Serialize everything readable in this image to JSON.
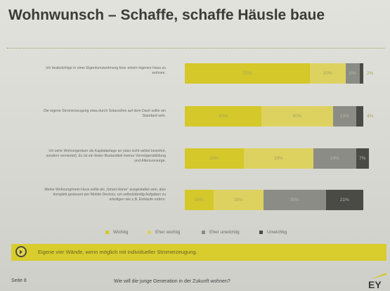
{
  "page": {
    "title": "Wohnwunsch – Schaffe, schaffe Häusle baue",
    "banner_text": "Eigene vier Wände, wenn möglich mit individueller Stromerzeugung.",
    "page_number": "Seite 8",
    "footer_question": "Wie will die junge Generation in der Zukunft wohnen?",
    "logo_text": "EY"
  },
  "chart_data": {
    "type": "bar",
    "stacked": true,
    "orientation": "horizontal",
    "unit": "%",
    "categories": [
      "Ich beabsichtige in einer Eigentumswohnung bzw. einem eigenen Haus zu wohnen.",
      "Die eigene Stromerzeugung etwa durch Solarzellen auf dem Dach sollte ein Standard sein.",
      "Ich sehe Wohneigentum als Kapitalanlage an (also nicht selbst bewohnt, sondern vermietet). Es ist ein fester Bestandteil meiner Vermögensbildung und Altersvorsorge.",
      "Meine Wohnung/mein Haus sollte als „Smart Home“ ausgestattet sein, also komplett gesteuert per Mobile Devices, um selbstständig Aufgaben zu erledigen wie z.B. Einkäufe ordern."
    ],
    "series": [
      {
        "name": "Wichtig",
        "color": "#d4c82a",
        "values": [
          70,
          43,
          33,
          16
        ]
      },
      {
        "name": "Eher wichtig",
        "color": "#ddd260",
        "values": [
          20,
          40,
          39,
          28
        ]
      },
      {
        "name": "Eher unwichtig",
        "color": "#8c8c86",
        "values": [
          8,
          13,
          24,
          35
        ]
      },
      {
        "name": "Unwichtig",
        "color": "#4a4a46",
        "values": [
          2,
          4,
          7,
          21
        ]
      }
    ],
    "value_labels": [
      [
        "70%",
        "20%",
        "8%",
        "2%"
      ],
      [
        "43%",
        "40%",
        "13%",
        "4%"
      ],
      [
        "33%",
        "39%",
        "24%",
        "7%"
      ],
      [
        "16%",
        "28%",
        "35%",
        "21%"
      ]
    ],
    "legend_position": "bottom",
    "xlim": [
      0,
      100
    ],
    "grid": false
  }
}
